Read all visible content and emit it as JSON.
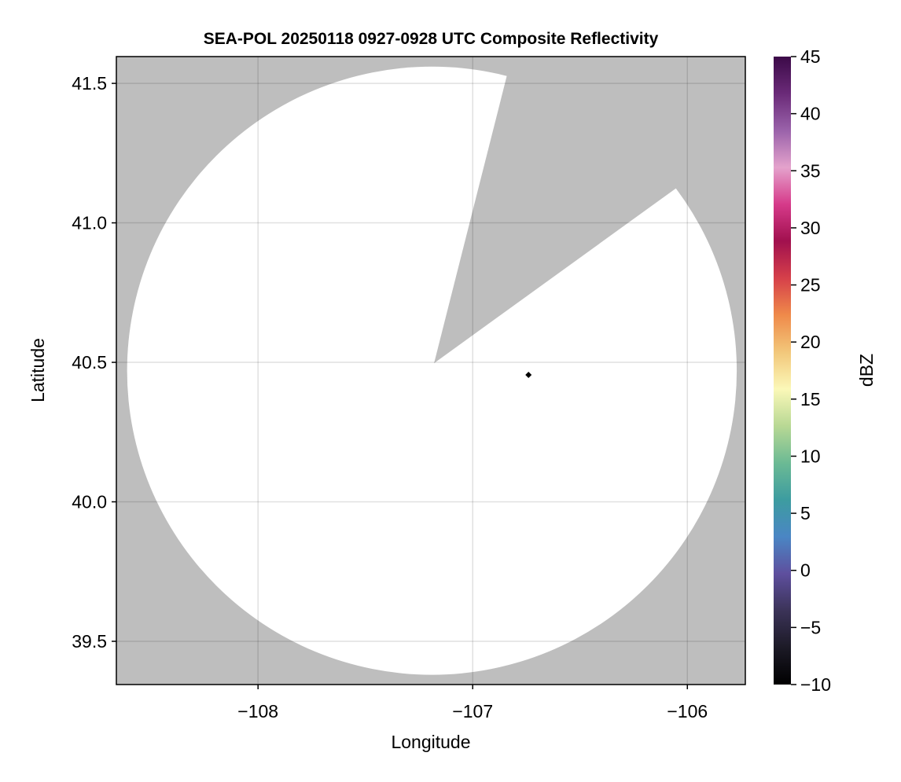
{
  "chart_data": {
    "type": "heatmap",
    "title": "SEA-POL 20250118 0927-0928 UTC Composite Reflectivity",
    "xlabel": "Longitude",
    "ylabel": "Latitude",
    "xlim": [
      -108.66,
      -105.73
    ],
    "ylim": [
      39.345,
      41.596
    ],
    "xticks": [
      -108,
      -107,
      -106
    ],
    "xtick_labels": [
      "−108",
      "−107",
      "−106"
    ],
    "yticks": [
      39.5,
      40.0,
      40.5,
      41.0,
      41.5
    ],
    "ytick_labels": [
      "39.5",
      "40.0",
      "40.5",
      "41.0",
      "41.5"
    ],
    "grid": true,
    "background_color": "#bebebe",
    "coverage": {
      "center": [
        -107.19,
        40.47
      ],
      "radius_lon_deg": 1.42,
      "radius_lat_deg": 1.09,
      "fill_color": "#ffffff",
      "blocked_wedge": {
        "apex": [
          -107.18,
          40.497
        ],
        "edge1": [
          -106.84,
          41.53
        ],
        "edge2": [
          -106.06,
          41.12
        ]
      }
    },
    "marker": {
      "lon": -106.74,
      "lat": 40.455,
      "color": "#000000"
    },
    "colorbar": {
      "label": "dBZ",
      "range": [
        -10,
        45
      ],
      "ticks": [
        -10,
        -5,
        0,
        5,
        10,
        15,
        20,
        25,
        30,
        35,
        40,
        45
      ],
      "tick_labels": [
        "−10",
        "−5",
        "0",
        "5",
        "10",
        "15",
        "20",
        "25",
        "30",
        "35",
        "40",
        "45"
      ],
      "colormap_stops": [
        "#000000",
        "#1c1a26",
        "#3b3358",
        "#5e4f9e",
        "#4a86c4",
        "#3d9ca0",
        "#6cba94",
        "#b8d894",
        "#fbf8b8",
        "#f2c77a",
        "#ef8a4a",
        "#d6404a",
        "#a1104e",
        "#d63a8a",
        "#e4a2cc",
        "#9a62aa",
        "#6a2a78",
        "#3c0a48"
      ]
    }
  }
}
